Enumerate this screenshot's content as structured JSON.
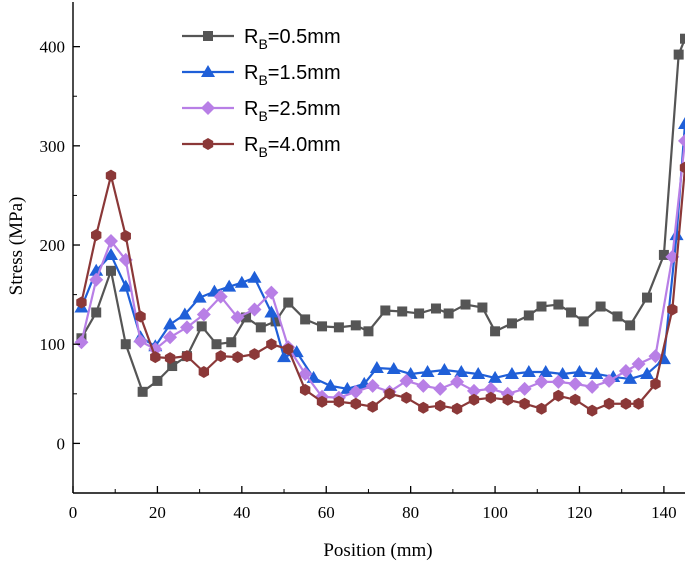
{
  "chart_data": {
    "type": "line",
    "xlabel": "Position (mm)",
    "ylabel": "Stress  (MPa)",
    "xlim": [
      0,
      145
    ],
    "ylim": [
      -50,
      445
    ],
    "xticks": [
      0,
      20,
      40,
      60,
      80,
      100,
      120,
      140
    ],
    "yticks": [
      0,
      100,
      200,
      300,
      400
    ],
    "grid": false,
    "legend_position": "top-left",
    "series": [
      {
        "name": "RB=0.5mm",
        "label_main": "R",
        "label_sub": "B",
        "label_rest": "=0.5mm",
        "color": "#555555",
        "marker": "square",
        "x": [
          2,
          5.5,
          9,
          12.5,
          16.5,
          20,
          23.5,
          27,
          30.5,
          34,
          37.5,
          41,
          44.5,
          48,
          51,
          55,
          59,
          63,
          67,
          70,
          74,
          78,
          82,
          86,
          89,
          93,
          97,
          100,
          104,
          108,
          111,
          115,
          118,
          121,
          125,
          129,
          132,
          136,
          140,
          143.5,
          145
        ],
        "y": [
          106,
          132,
          174,
          100,
          52,
          63,
          78,
          88,
          118,
          100,
          102,
          127,
          117,
          123,
          142,
          125,
          118,
          117,
          119,
          113,
          134,
          133,
          131,
          136,
          131,
          140,
          137,
          113,
          121,
          129,
          138,
          140,
          132,
          123,
          138,
          128,
          119,
          147,
          190,
          392,
          408
        ]
      },
      {
        "name": "RB=1.5mm",
        "label_main": "R",
        "label_sub": "B",
        "label_rest": "=1.5mm",
        "color": "#1f5fd8",
        "marker": "triangle",
        "x": [
          2,
          5.5,
          9,
          12.5,
          16,
          19.5,
          23,
          26.5,
          30,
          33.5,
          37,
          40,
          43,
          47,
          50,
          53,
          57,
          61,
          65,
          69,
          72,
          76,
          80,
          84,
          88,
          92,
          96,
          100,
          104,
          108,
          112,
          116,
          120,
          124,
          128,
          132,
          136,
          140,
          143,
          145
        ],
        "y": [
          137,
          174,
          190,
          158,
          107,
          98,
          120,
          130,
          147,
          153,
          158,
          162,
          167,
          132,
          87,
          92,
          66,
          58,
          55,
          60,
          76,
          75,
          70,
          72,
          74,
          72,
          70,
          66,
          70,
          72,
          72,
          70,
          72,
          70,
          67,
          65,
          70,
          85,
          210,
          322
        ]
      },
      {
        "name": "RB=2.5mm",
        "label_main": "R",
        "label_sub": "B",
        "label_rest": "=2.5mm",
        "color": "#b87fe6",
        "marker": "diamond",
        "x": [
          2,
          5.5,
          9,
          12.5,
          16,
          19.5,
          23,
          27,
          31,
          35,
          39,
          43,
          47,
          51,
          55,
          59,
          63,
          67,
          71,
          75,
          79,
          83,
          87,
          91,
          95,
          99,
          103,
          107,
          111,
          115,
          119,
          123,
          127,
          131,
          134,
          138,
          142,
          145
        ],
        "y": [
          102,
          165,
          204,
          185,
          103,
          95,
          107,
          117,
          130,
          148,
          127,
          135,
          152,
          97,
          70,
          47,
          46,
          52,
          58,
          52,
          63,
          58,
          55,
          62,
          53,
          55,
          50,
          55,
          62,
          62,
          60,
          57,
          63,
          73,
          80,
          88,
          188,
          305
        ]
      },
      {
        "name": "RB=4.0mm",
        "label_main": "R",
        "label_sub": "B",
        "label_rest": "=4.0mm",
        "color": "#8b3838",
        "marker": "hexagon",
        "x": [
          2,
          5.5,
          9,
          12.5,
          16,
          19.5,
          23,
          27,
          31,
          35,
          39,
          43,
          47,
          51,
          55,
          59,
          63,
          67,
          71,
          75,
          79,
          83,
          87,
          91,
          95,
          99,
          103,
          107,
          111,
          115,
          119,
          123,
          127,
          131,
          134,
          138,
          142,
          145
        ],
        "y": [
          142,
          210,
          270,
          209,
          128,
          87,
          86,
          88,
          72,
          88,
          87,
          90,
          100,
          95,
          54,
          42,
          42,
          40,
          37,
          50,
          46,
          36,
          38,
          35,
          44,
          46,
          44,
          40,
          35,
          48,
          44,
          33,
          40,
          40,
          40,
          60,
          135,
          278
        ]
      }
    ]
  }
}
